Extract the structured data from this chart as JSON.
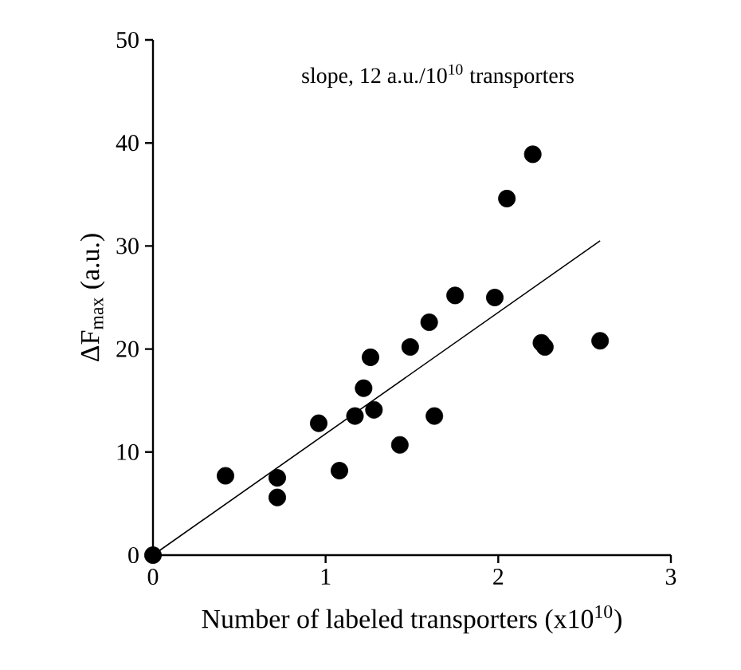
{
  "chart_data": {
    "type": "scatter",
    "xlabel": "Number of labeled transporters (x10$^{10}$)",
    "ylabel": "ΔF$_{max}$ (a.u.)",
    "annotations": [
      "slope, 12 a.u./10$^{10}$ transporters"
    ],
    "xlim": [
      0,
      3
    ],
    "ylim": [
      0,
      50
    ],
    "xticks": [
      0,
      1,
      2,
      3
    ],
    "yticks": [
      0,
      10,
      20,
      30,
      40,
      50
    ],
    "series": [
      {
        "color": "#000000",
        "marker": "circle",
        "x": [
          0,
          0.42,
          0.72,
          0.72,
          0.96,
          1.08,
          1.17,
          1.22,
          1.28,
          1.26,
          1.43,
          1.49,
          1.6,
          1.63,
          1.75,
          1.98,
          2.05,
          2.2,
          2.25,
          2.27,
          2.59
        ],
        "values": [
          0,
          7.7,
          7.5,
          5.6,
          12.8,
          8.2,
          13.5,
          16.2,
          14.1,
          19.2,
          10.7,
          20.2,
          22.6,
          13.5,
          25.2,
          25.0,
          34.6,
          38.9,
          20.6,
          20.2,
          20.8
        ]
      },
      {
        "type": "line",
        "color": "#000000",
        "marker": "none",
        "line_style": "solid",
        "x": [
          0,
          2.59
        ],
        "values": [
          0,
          30.5
        ]
      }
    ]
  }
}
